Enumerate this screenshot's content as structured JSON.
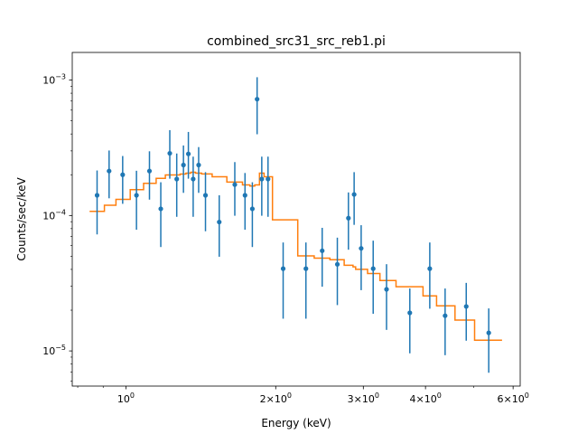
{
  "colors": {
    "data_points": "#1f77b4",
    "model_line": "#ff7f0e",
    "axes": "#000000",
    "background": "#ffffff"
  },
  "chart_data": {
    "type": "scatter",
    "title": "combined_src31_src_reb1.pi",
    "xlabel": "Energy (keV)",
    "ylabel": "Counts/sec/keV",
    "xscale": "log",
    "yscale": "log",
    "xlim": [
      0.78,
      6.2
    ],
    "ylim": [
      5.5e-06,
      0.0016
    ],
    "grid": false,
    "legend": "none",
    "x_ticks": [
      {
        "value": 1,
        "label": "10^0",
        "base": "10",
        "exp": "0"
      },
      {
        "value": 2,
        "label": "2×10^0",
        "base": "2×10",
        "exp": "0"
      },
      {
        "value": 3,
        "label": "3×10^0",
        "base": "3×10",
        "exp": "0"
      },
      {
        "value": 4,
        "label": "4×10^0",
        "base": "4×10",
        "exp": "0"
      },
      {
        "value": 6,
        "label": "6×10^0",
        "base": "6×10",
        "exp": "0"
      }
    ],
    "y_ticks": [
      {
        "value": 1e-05,
        "label": "10^-5",
        "base": "10",
        "exp": "−5"
      },
      {
        "value": 0.0001,
        "label": "10^-4",
        "base": "10",
        "exp": "−4"
      },
      {
        "value": 0.001,
        "label": "10^-3",
        "base": "10",
        "exp": "−3"
      }
    ],
    "series": [
      {
        "kind": "points_with_errorbars",
        "points": [
          {
            "x": 0.875,
            "y": 0.000141,
            "lo": 7.25e-05,
            "hi": 0.000215
          },
          {
            "x": 0.925,
            "y": 0.000213,
            "lo": 0.000134,
            "hi": 0.000302
          },
          {
            "x": 0.985,
            "y": 0.0002,
            "lo": 0.000122,
            "hi": 0.000275
          },
          {
            "x": 1.05,
            "y": 0.000141,
            "lo": 7.85e-05,
            "hi": 0.000214
          },
          {
            "x": 1.115,
            "y": 0.000213,
            "lo": 0.000131,
            "hi": 0.000298
          },
          {
            "x": 1.175,
            "y": 0.000112,
            "lo": 5.85e-05,
            "hi": 0.000176
          },
          {
            "x": 1.225,
            "y": 0.000288,
            "lo": 0.000187,
            "hi": 0.000427
          },
          {
            "x": 1.265,
            "y": 0.000186,
            "lo": 9.78e-05,
            "hi": 0.000287
          },
          {
            "x": 1.305,
            "y": 0.000236,
            "lo": 0.000147,
            "hi": 0.000329
          },
          {
            "x": 1.335,
            "y": 0.000285,
            "lo": 0.000187,
            "hi": 0.000414
          },
          {
            "x": 1.365,
            "y": 0.000186,
            "lo": 9.78e-05,
            "hi": 0.000272
          },
          {
            "x": 1.4,
            "y": 0.000236,
            "lo": 0.000147,
            "hi": 0.00032
          },
          {
            "x": 1.445,
            "y": 0.000141,
            "lo": 7.65e-05,
            "hi": 0.000209
          },
          {
            "x": 1.54,
            "y": 8.95e-05,
            "lo": 4.96e-05,
            "hi": 0.000141
          },
          {
            "x": 1.655,
            "y": 0.000169,
            "lo": 9.96e-05,
            "hi": 0.000248
          },
          {
            "x": 1.735,
            "y": 0.000141,
            "lo": 7.85e-05,
            "hi": 0.000206
          },
          {
            "x": 1.795,
            "y": 0.000112,
            "lo": 5.85e-05,
            "hi": 0.000176
          },
          {
            "x": 1.835,
            "y": 0.000723,
            "lo": 0.000398,
            "hi": 0.00105
          },
          {
            "x": 1.875,
            "y": 0.000186,
            "lo": 9.96e-05,
            "hi": 0.000272
          },
          {
            "x": 1.93,
            "y": 0.000186,
            "lo": 9.78e-05,
            "hi": 0.000272
          },
          {
            "x": 2.07,
            "y": 4.05e-05,
            "lo": 1.73e-05,
            "hi": 6.32e-05
          },
          {
            "x": 2.3,
            "y": 4.05e-05,
            "lo": 1.73e-05,
            "hi": 6.32e-05
          },
          {
            "x": 2.48,
            "y": 5.49e-05,
            "lo": 2.98e-05,
            "hi": 8.11e-05
          },
          {
            "x": 2.66,
            "y": 4.36e-05,
            "lo": 2.18e-05,
            "hi": 6.86e-05
          },
          {
            "x": 2.8,
            "y": 9.56e-05,
            "lo": 5.59e-05,
            "hi": 0.000148
          },
          {
            "x": 2.875,
            "y": 0.000143,
            "lo": 8.53e-05,
            "hi": 0.000209
          },
          {
            "x": 2.97,
            "y": 5.72e-05,
            "lo": 2.81e-05,
            "hi": 8.48e-05
          },
          {
            "x": 3.14,
            "y": 4.05e-05,
            "lo": 1.88e-05,
            "hi": 6.52e-05
          },
          {
            "x": 3.34,
            "y": 2.85e-05,
            "lo": 1.43e-05,
            "hi": 4.37e-05
          },
          {
            "x": 3.72,
            "y": 1.91e-05,
            "lo": 9.6e-06,
            "hi": 2.89e-05
          },
          {
            "x": 4.08,
            "y": 4.05e-05,
            "lo": 2.05e-05,
            "hi": 6.32e-05
          },
          {
            "x": 4.38,
            "y": 1.82e-05,
            "lo": 9.3e-06,
            "hi": 2.89e-05
          },
          {
            "x": 4.83,
            "y": 2.13e-05,
            "lo": 1.19e-05,
            "hi": 3.18e-05
          },
          {
            "x": 5.36,
            "y": 1.36e-05,
            "lo": 6.9e-06,
            "hi": 2.06e-05
          }
        ]
      },
      {
        "kind": "step_model",
        "edges": [
          0.845,
          0.905,
          0.955,
          1.02,
          1.085,
          1.15,
          1.2,
          1.245,
          1.285,
          1.32,
          1.35,
          1.38,
          1.42,
          1.49,
          1.595,
          1.715,
          1.775,
          1.815,
          1.855,
          1.895,
          1.97,
          2.215,
          2.39,
          2.57,
          2.745,
          2.86,
          2.895,
          3.06,
          3.24,
          3.49,
          3.955,
          4.21,
          4.585,
          5.02,
          5.7
        ],
        "values": [
          0.0001073,
          0.0001191,
          0.0001315,
          0.0001552,
          0.0001728,
          0.0001879,
          0.0001994,
          0.0001994,
          0.0002024,
          0.0002056,
          0.0002088,
          0.0002056,
          0.0002026,
          0.0001933,
          0.0001765,
          0.0001683,
          0.000165,
          0.0001683,
          0.0002056,
          0.0001933,
          9.3e-05,
          5.03e-05,
          4.84e-05,
          4.71e-05,
          4.29e-05,
          4.18e-05,
          4e-05,
          3.73e-05,
          3.31e-05,
          2.98e-05,
          2.55e-05,
          2.15e-05,
          1.69e-05,
          1.2e-05
        ]
      }
    ]
  }
}
